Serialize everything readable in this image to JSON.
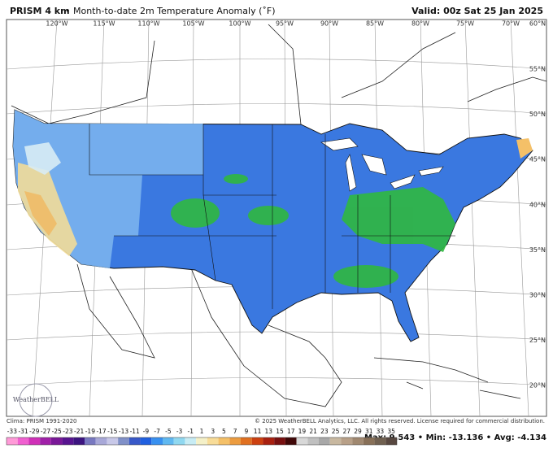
{
  "header": {
    "product": "PRISM 4 km",
    "subtitle": "• Month-to-date 2m Temperature Anomaly (˚F)",
    "valid": "Valid: 00z Sat 25 Jan 2025"
  },
  "longitudes": [
    "120°W",
    "115°W",
    "110°W",
    "105°W",
    "100°W",
    "95°W",
    "90°W",
    "85°W",
    "80°W",
    "75°W",
    "70°W",
    "60°N"
  ],
  "latitudes": [
    "55°N",
    "50°N",
    "45°N",
    "40°N",
    "35°N",
    "30°N",
    "25°N",
    "20°N"
  ],
  "logo": "WeatherBELL",
  "footer": {
    "left": "Clima: PRISM 1991-2020",
    "right": "© 2025 WeatherBELL Analytics, LLC. All rights reserved. License required for commercial distribution."
  },
  "colorbar": {
    "labels": [
      -33,
      -31,
      -29,
      -27,
      -25,
      -23,
      -21,
      -19,
      -17,
      -15,
      -13,
      -11,
      -9,
      -7,
      -5,
      -3,
      -1,
      1,
      3,
      5,
      7,
      9,
      11,
      13,
      15,
      17,
      19,
      21,
      23,
      25,
      27,
      29,
      31,
      33,
      35
    ],
    "colors": [
      "#ff9ad8",
      "#f060d0",
      "#d030b8",
      "#a020a8",
      "#7a1898",
      "#581490",
      "#3c1480",
      "#7878c0",
      "#a8a8d8",
      "#c8c8e8",
      "#8090c8",
      "#3858c8",
      "#2060e0",
      "#3890f0",
      "#60b8f0",
      "#90d8f0",
      "#c8ecf4",
      "#f4f0c8",
      "#f8dc98",
      "#f4c068",
      "#ec9c40",
      "#e07020",
      "#cc4010",
      "#a82010",
      "#781010",
      "#400808",
      "#d8d8d8",
      "#c0c0c0",
      "#a8a8a8",
      "#c8b8a0",
      "#b8a088",
      "#a08870",
      "#887058",
      "#706050",
      "#584840"
    ]
  },
  "stats": "Max: 9.543 • Min: -13.136 • Avg: -4.134"
}
